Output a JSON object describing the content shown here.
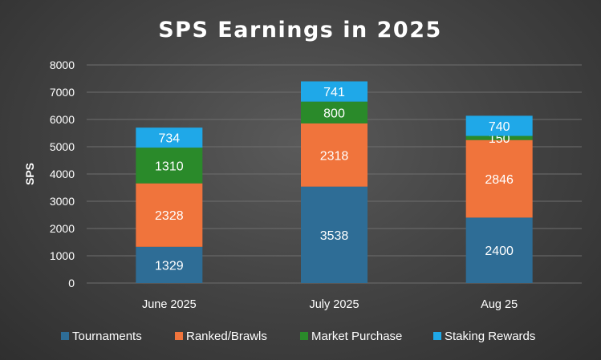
{
  "chart_data": {
    "type": "bar",
    "stacked": true,
    "title": "SPS Earnings in 2025",
    "xlabel": "",
    "ylabel": "SPS",
    "ylim": [
      0,
      8000
    ],
    "yticks": [
      0,
      1000,
      2000,
      3000,
      4000,
      5000,
      6000,
      7000,
      8000
    ],
    "grid": true,
    "legend": "bottom",
    "categories": [
      "June 2025",
      "July 2025",
      "Aug 25"
    ],
    "series": [
      {
        "name": "Tournaments",
        "values": [
          1329,
          3538,
          2400
        ],
        "color": "#2e6d96"
      },
      {
        "name": "Ranked/Brawls",
        "values": [
          2328,
          2318,
          2846
        ],
        "color": "#f0743c"
      },
      {
        "name": "Market Purchase",
        "values": [
          1310,
          800,
          150
        ],
        "color": "#2a8a2a"
      },
      {
        "name": "Staking Rewards",
        "values": [
          734,
          741,
          740
        ],
        "color": "#1fa8e8"
      }
    ]
  }
}
